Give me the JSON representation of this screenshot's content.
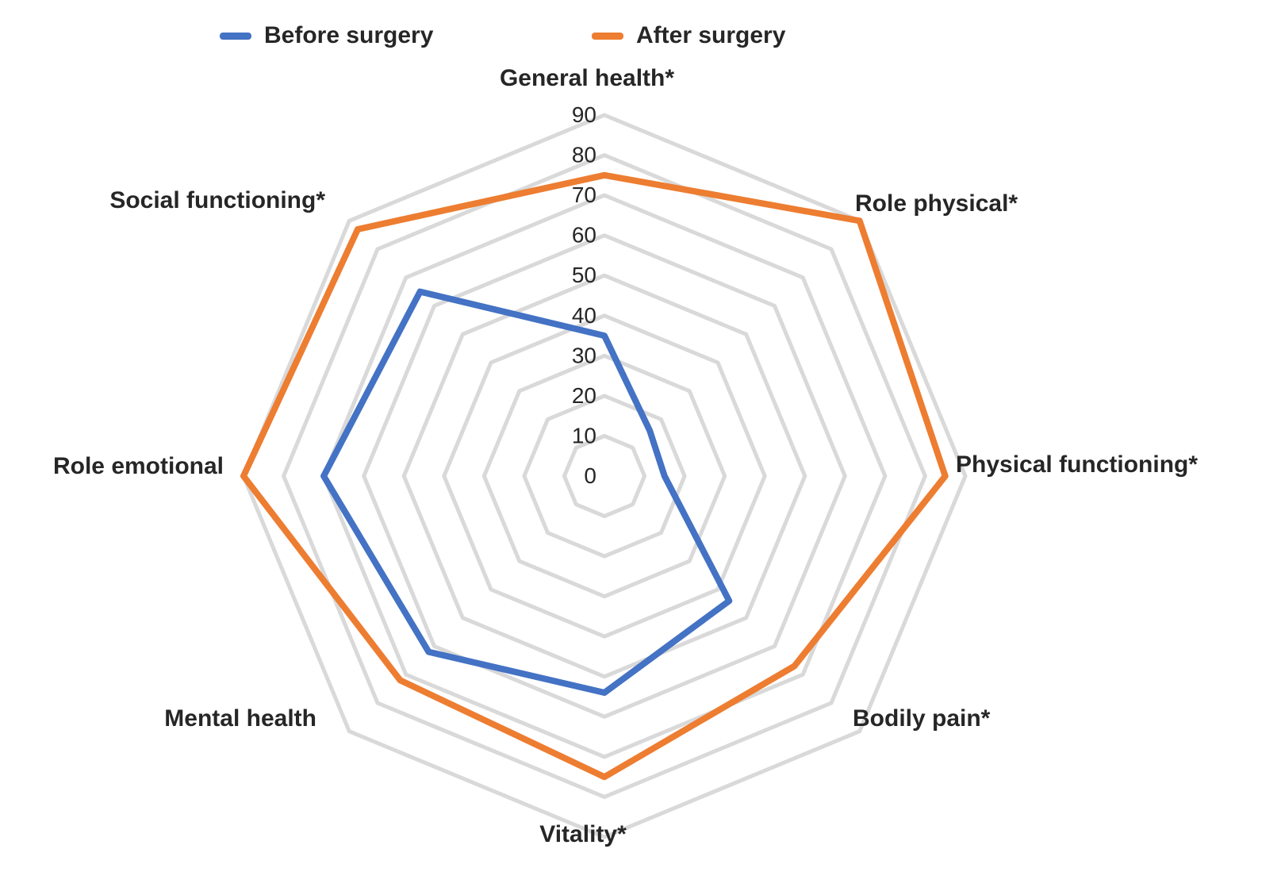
{
  "legend": {
    "items": [
      {
        "label": "Before surgery",
        "color": "#4472C4"
      },
      {
        "label": "After surgery",
        "color": "#ED7D31"
      }
    ]
  },
  "chart_data": {
    "type": "radar",
    "title": "",
    "categories": [
      "General health*",
      "Role physical*",
      "Physical functioning*",
      "Bodily pain*",
      "Vitality*",
      "Mental health",
      "Role emotional",
      "Social functioning*"
    ],
    "series": [
      {
        "name": "Before surgery",
        "color": "#4472C4",
        "values": [
          35,
          16,
          15,
          44,
          54,
          62,
          70,
          65
        ]
      },
      {
        "name": "After surgery",
        "color": "#ED7D31",
        "values": [
          75,
          90,
          85,
          67,
          75,
          72,
          90,
          87
        ]
      }
    ],
    "radial_ticks": [
      0,
      10,
      20,
      30,
      40,
      50,
      60,
      70,
      80,
      90
    ],
    "rmin": 0,
    "rmax": 90,
    "grid": "concentric octagonal rings, no radial spokes",
    "gridline_color": "#D9D9D9",
    "tick_label_color": "#262626",
    "legend_position": "top-left"
  }
}
